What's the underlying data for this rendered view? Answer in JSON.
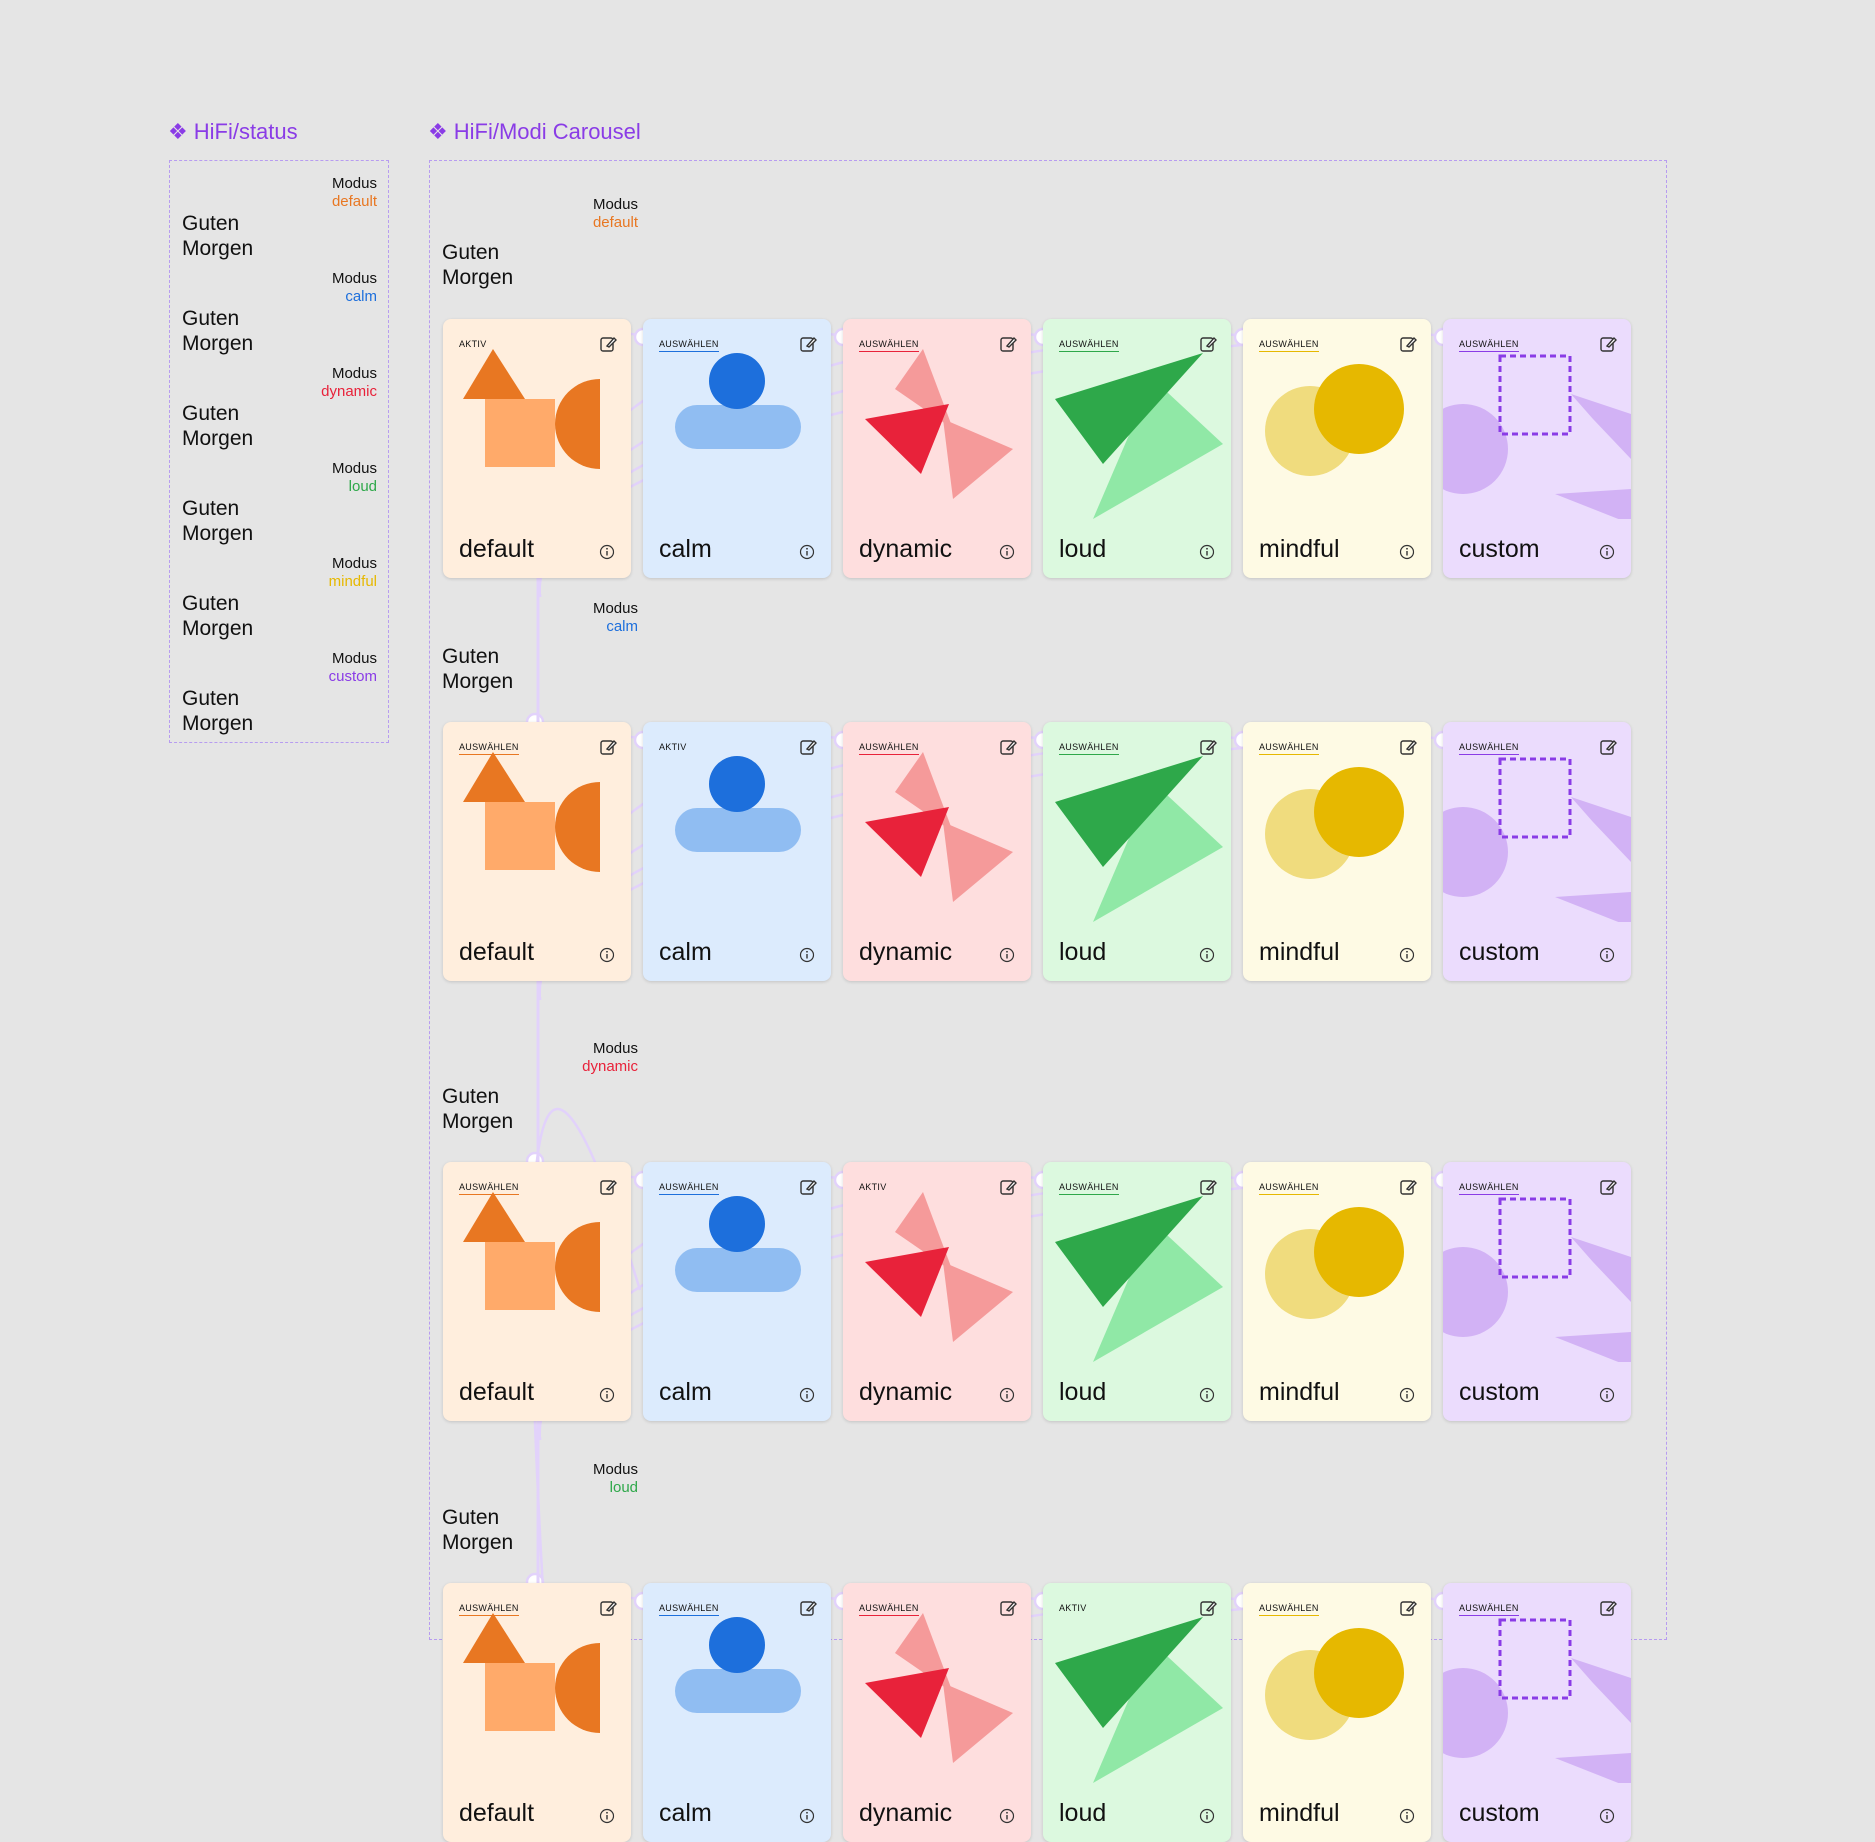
{
  "frames": {
    "status_title": "HiFi/status",
    "carousel_title": "HiFi/Modi Carousel",
    "component_icon": "component-diamond-icon"
  },
  "colors": {
    "accent": "#8a3ce6",
    "default": "#e87722",
    "calm": "#1d6fdc",
    "dynamic": "#e8223a",
    "loud": "#2ea84a",
    "mindful": "#e6b800",
    "custom": "#8a3ce6",
    "connector": "#e2d2fb"
  },
  "status": {
    "items": [
      {
        "modus": "Modus",
        "value": "default",
        "greeting1": "Guten",
        "greeting2": "Morgen"
      },
      {
        "modus": "Modus",
        "value": "calm",
        "greeting1": "Guten",
        "greeting2": "Morgen"
      },
      {
        "modus": "Modus",
        "value": "dynamic",
        "greeting1": "Guten",
        "greeting2": "Morgen"
      },
      {
        "modus": "Modus",
        "value": "loud",
        "greeting1": "Guten",
        "greeting2": "Morgen"
      },
      {
        "modus": "Modus",
        "value": "mindful",
        "greeting1": "Guten",
        "greeting2": "Morgen"
      },
      {
        "modus": "Modus",
        "value": "custom",
        "greeting1": "Guten",
        "greeting2": "Morgen"
      }
    ]
  },
  "carousel": {
    "rows": [
      {
        "modus": "Modus",
        "value": "default",
        "greeting1": "Guten",
        "greeting2": "Morgen",
        "active": 0
      },
      {
        "modus": "Modus",
        "value": "calm",
        "greeting1": "Guten",
        "greeting2": "Morgen",
        "active": 1
      },
      {
        "modus": "Modus",
        "value": "dynamic",
        "greeting1": "Guten",
        "greeting2": "Morgen",
        "active": 2
      },
      {
        "modus": "Modus",
        "value": "loud",
        "greeting1": "Guten",
        "greeting2": "Morgen",
        "active": 3
      }
    ],
    "cards": [
      {
        "label": "default"
      },
      {
        "label": "calm"
      },
      {
        "label": "dynamic"
      },
      {
        "label": "loud"
      },
      {
        "label": "mindful"
      },
      {
        "label": "custom"
      }
    ],
    "tag_active": "AKTIV",
    "tag_select": "AUSWÄHLEN",
    "edit_icon": "edit-icon",
    "info_icon": "info-icon"
  }
}
